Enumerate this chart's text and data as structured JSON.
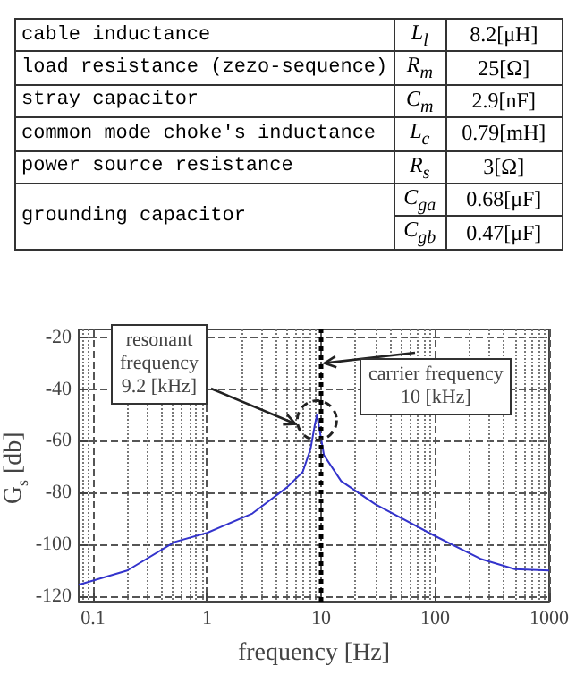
{
  "chart_data": [
    {
      "type": "other",
      "annotations": [
        "cable inductance",
        "L$_{l}$",
        "8.2[μH]",
        "load resistance (zezo-sequence)",
        "R$_{m}$",
        "25[Ω]",
        "stray capacitor",
        "C$_{m}$",
        "2.9[nF]",
        "common mode choke's inductance",
        "L$_{c}$",
        "0.79[mH]",
        "power source resistance",
        "R$_{s}$",
        "3[Ω]",
        "grounding capacitor",
        "C$_{ga}$",
        "0.68[μF]",
        "C$_{gb}$",
        "0.47[μF]"
      ]
    },
    {
      "type": "line",
      "xlabel": "frequency [Hz]",
      "ylabel": "G$_{s}$ [db]",
      "log": "x",
      "grid": true,
      "marker": "none",
      "line_style": "solid",
      "xlim": [
        0.075,
        1000
      ],
      "xticks": [
        0.1,
        1,
        10,
        100,
        1000
      ],
      "ylim": [
        -122,
        -17
      ],
      "yticks": [
        -20,
        -40,
        -60,
        -80,
        -100,
        -120
      ],
      "series": [
        {
          "color": "#3333cc",
          "x": [
            0.075,
            0.2,
            0.52,
            1,
            2.5,
            5,
            6.9,
            8.1,
            8.8,
            9.2,
            10,
            10.6,
            15,
            30,
            100,
            250,
            500,
            1000
          ],
          "values": [
            -115.5,
            -110,
            -99,
            -95.5,
            -88,
            -78,
            -72,
            -63,
            -54,
            -50,
            -59,
            -65.5,
            -75.5,
            -84.5,
            -96.7,
            -105.5,
            -109.5,
            -110
          ]
        }
      ],
      "ref_lines": [
        {
          "axis": "x",
          "value": 10,
          "label": "carrier frequency\n10 [kHz]",
          "color": "#000000",
          "line_style": "dotted"
        }
      ],
      "annotations": [
        "resonant\nfrequency\n9.2 [kHz]"
      ]
    }
  ]
}
